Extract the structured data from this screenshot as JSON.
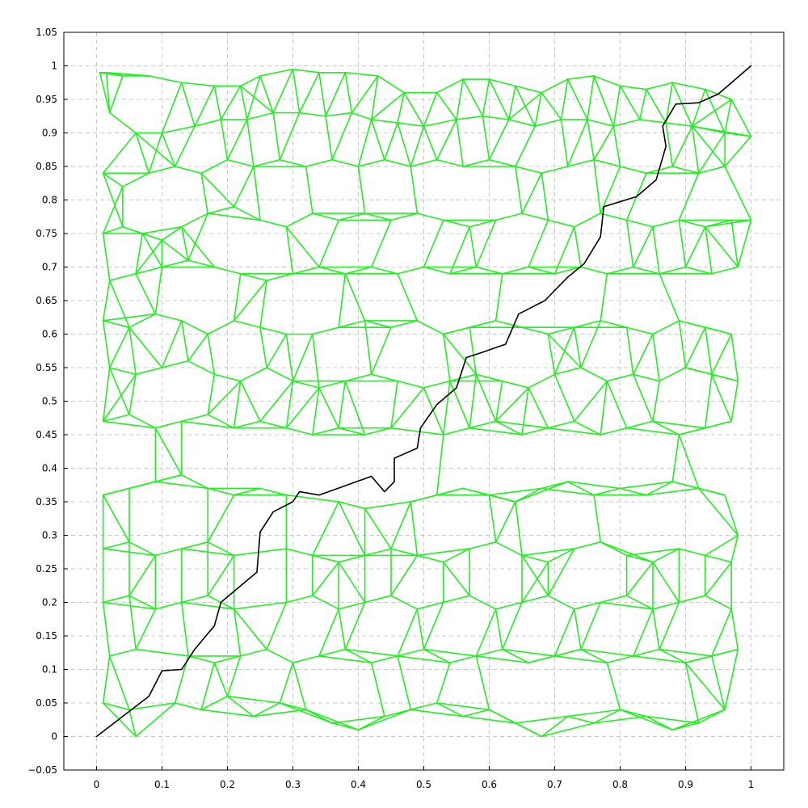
{
  "chart_data": {
    "type": "network",
    "xlim": [
      -0.05,
      1.05
    ],
    "ylim": [
      -0.05,
      1.05
    ],
    "grid": true,
    "xticks": [
      "0",
      "0.1",
      "0.2",
      "0.3",
      "0.4",
      "0.5",
      "0.6",
      "0.7",
      "0.8",
      "0.9",
      "1"
    ],
    "yticks": [
      "−0.05",
      "0",
      "0.05",
      "0.1",
      "0.15",
      "0.2",
      "0.25",
      "0.3",
      "0.35",
      "0.4",
      "0.45",
      "0.5",
      "0.55",
      "0.6",
      "0.65",
      "0.7",
      "0.75",
      "0.8",
      "0.85",
      "0.9",
      "0.95",
      "1",
      "1.05"
    ],
    "xtick_values": [
      0,
      0.1,
      0.2,
      0.3,
      0.4,
      0.5,
      0.6,
      0.7,
      0.8,
      0.9,
      1
    ],
    "ytick_values": [
      -0.05,
      0,
      0.05,
      0.1,
      0.15,
      0.2,
      0.25,
      0.3,
      0.35,
      0.4,
      0.45,
      0.5,
      0.55,
      0.6,
      0.65,
      0.7,
      0.75,
      0.8,
      0.85,
      0.9,
      0.95,
      1,
      1.05
    ],
    "colors": {
      "edges": "#22ee22",
      "path": "#000000",
      "grid": "#c8c8c8"
    },
    "shortest_path": [
      [
        0,
        0
      ],
      [
        0.08,
        0.06
      ],
      [
        0.1,
        0.098
      ],
      [
        0.13,
        0.1
      ],
      [
        0.15,
        0.13
      ],
      [
        0.18,
        0.165
      ],
      [
        0.19,
        0.2
      ],
      [
        0.245,
        0.245
      ],
      [
        0.25,
        0.305
      ],
      [
        0.27,
        0.335
      ],
      [
        0.3,
        0.35
      ],
      [
        0.31,
        0.365
      ],
      [
        0.34,
        0.36
      ],
      [
        0.42,
        0.388
      ],
      [
        0.44,
        0.365
      ],
      [
        0.455,
        0.38
      ],
      [
        0.455,
        0.415
      ],
      [
        0.49,
        0.43
      ],
      [
        0.495,
        0.46
      ],
      [
        0.52,
        0.495
      ],
      [
        0.55,
        0.52
      ],
      [
        0.565,
        0.565
      ],
      [
        0.59,
        0.573
      ],
      [
        0.625,
        0.585
      ],
      [
        0.645,
        0.63
      ],
      [
        0.685,
        0.65
      ],
      [
        0.72,
        0.685
      ],
      [
        0.745,
        0.705
      ],
      [
        0.77,
        0.745
      ],
      [
        0.775,
        0.79
      ],
      [
        0.825,
        0.805
      ],
      [
        0.855,
        0.83
      ],
      [
        0.87,
        0.88
      ],
      [
        0.865,
        0.91
      ],
      [
        0.885,
        0.943
      ],
      [
        0.92,
        0.945
      ],
      [
        0.95,
        0.958
      ],
      [
        1,
        1
      ]
    ],
    "graph": {
      "nodes": [
        [
          0.005,
          0.99
        ],
        [
          0.015,
          0.99
        ],
        [
          0.04,
          0.985
        ],
        [
          0.08,
          0.985
        ],
        [
          0.13,
          0.975
        ],
        [
          0.18,
          0.97
        ],
        [
          0.22,
          0.97
        ],
        [
          0.25,
          0.985
        ],
        [
          0.3,
          0.995
        ],
        [
          0.34,
          0.99
        ],
        [
          0.38,
          0.99
        ],
        [
          0.43,
          0.985
        ],
        [
          0.47,
          0.96
        ],
        [
          0.52,
          0.96
        ],
        [
          0.56,
          0.98
        ],
        [
          0.6,
          0.98
        ],
        [
          0.64,
          0.97
        ],
        [
          0.68,
          0.96
        ],
        [
          0.72,
          0.98
        ],
        [
          0.76,
          0.985
        ],
        [
          0.8,
          0.97
        ],
        [
          0.84,
          0.965
        ],
        [
          0.88,
          0.975
        ],
        [
          0.93,
          0.965
        ],
        [
          0.97,
          0.95
        ],
        [
          0.02,
          0.93
        ],
        [
          0.06,
          0.9
        ],
        [
          0.1,
          0.9
        ],
        [
          0.15,
          0.91
        ],
        [
          0.19,
          0.92
        ],
        [
          0.23,
          0.92
        ],
        [
          0.27,
          0.93
        ],
        [
          0.31,
          0.93
        ],
        [
          0.35,
          0.925
        ],
        [
          0.39,
          0.93
        ],
        [
          0.42,
          0.92
        ],
        [
          0.46,
          0.915
        ],
        [
          0.5,
          0.91
        ],
        [
          0.55,
          0.92
        ],
        [
          0.59,
          0.925
        ],
        [
          0.63,
          0.92
        ],
        [
          0.67,
          0.91
        ],
        [
          0.71,
          0.92
        ],
        [
          0.75,
          0.92
        ],
        [
          0.79,
          0.91
        ],
        [
          0.83,
          0.92
        ],
        [
          0.87,
          0.915
        ],
        [
          0.91,
          0.91
        ],
        [
          0.96,
          0.9
        ],
        [
          1.0,
          0.895
        ],
        [
          0.01,
          0.84
        ],
        [
          0.04,
          0.82
        ],
        [
          0.08,
          0.84
        ],
        [
          0.12,
          0.85
        ],
        [
          0.16,
          0.84
        ],
        [
          0.2,
          0.86
        ],
        [
          0.24,
          0.85
        ],
        [
          0.28,
          0.86
        ],
        [
          0.32,
          0.85
        ],
        [
          0.36,
          0.86
        ],
        [
          0.4,
          0.85
        ],
        [
          0.44,
          0.86
        ],
        [
          0.48,
          0.85
        ],
        [
          0.52,
          0.86
        ],
        [
          0.56,
          0.85
        ],
        [
          0.6,
          0.86
        ],
        [
          0.64,
          0.85
        ],
        [
          0.68,
          0.84
        ],
        [
          0.72,
          0.85
        ],
        [
          0.76,
          0.86
        ],
        [
          0.8,
          0.85
        ],
        [
          0.84,
          0.84
        ],
        [
          0.88,
          0.85
        ],
        [
          0.92,
          0.84
        ],
        [
          0.96,
          0.85
        ],
        [
          0.01,
          0.75
        ],
        [
          0.04,
          0.76
        ],
        [
          0.07,
          0.75
        ],
        [
          0.1,
          0.74
        ],
        [
          0.13,
          0.76
        ],
        [
          0.17,
          0.78
        ],
        [
          0.21,
          0.79
        ],
        [
          0.25,
          0.77
        ],
        [
          0.29,
          0.76
        ],
        [
          0.33,
          0.78
        ],
        [
          0.37,
          0.77
        ],
        [
          0.41,
          0.78
        ],
        [
          0.45,
          0.77
        ],
        [
          0.49,
          0.78
        ],
        [
          0.53,
          0.77
        ],
        [
          0.57,
          0.76
        ],
        [
          0.61,
          0.77
        ],
        [
          0.65,
          0.78
        ],
        [
          0.69,
          0.77
        ],
        [
          0.73,
          0.76
        ],
        [
          0.77,
          0.78
        ],
        [
          0.81,
          0.77
        ],
        [
          0.85,
          0.76
        ],
        [
          0.89,
          0.77
        ],
        [
          0.93,
          0.76
        ],
        [
          0.97,
          0.77
        ],
        [
          1.0,
          0.77
        ],
        [
          0.02,
          0.68
        ],
        [
          0.06,
          0.69
        ],
        [
          0.1,
          0.7
        ],
        [
          0.14,
          0.71
        ],
        [
          0.18,
          0.7
        ],
        [
          0.22,
          0.69
        ],
        [
          0.26,
          0.68
        ],
        [
          0.3,
          0.69
        ],
        [
          0.34,
          0.7
        ],
        [
          0.38,
          0.69
        ],
        [
          0.42,
          0.7
        ],
        [
          0.46,
          0.69
        ],
        [
          0.5,
          0.7
        ],
        [
          0.54,
          0.69
        ],
        [
          0.58,
          0.7
        ],
        [
          0.62,
          0.69
        ],
        [
          0.66,
          0.7
        ],
        [
          0.7,
          0.69
        ],
        [
          0.74,
          0.7
        ],
        [
          0.78,
          0.69
        ],
        [
          0.82,
          0.7
        ],
        [
          0.86,
          0.69
        ],
        [
          0.9,
          0.7
        ],
        [
          0.94,
          0.69
        ],
        [
          0.98,
          0.7
        ],
        [
          0.01,
          0.62
        ],
        [
          0.05,
          0.61
        ],
        [
          0.09,
          0.63
        ],
        [
          0.13,
          0.62
        ],
        [
          0.17,
          0.6
        ],
        [
          0.21,
          0.62
        ],
        [
          0.25,
          0.61
        ],
        [
          0.29,
          0.6
        ],
        [
          0.33,
          0.6
        ],
        [
          0.37,
          0.61
        ],
        [
          0.41,
          0.62
        ],
        [
          0.45,
          0.61
        ],
        [
          0.49,
          0.62
        ],
        [
          0.53,
          0.6
        ],
        [
          0.57,
          0.61
        ],
        [
          0.61,
          0.62
        ],
        [
          0.65,
          0.61
        ],
        [
          0.69,
          0.6
        ],
        [
          0.73,
          0.61
        ],
        [
          0.77,
          0.62
        ],
        [
          0.81,
          0.61
        ],
        [
          0.85,
          0.6
        ],
        [
          0.89,
          0.62
        ],
        [
          0.93,
          0.61
        ],
        [
          0.97,
          0.6
        ],
        [
          0.02,
          0.55
        ],
        [
          0.06,
          0.54
        ],
        [
          0.1,
          0.55
        ],
        [
          0.14,
          0.56
        ],
        [
          0.18,
          0.54
        ],
        [
          0.22,
          0.53
        ],
        [
          0.26,
          0.55
        ],
        [
          0.3,
          0.53
        ],
        [
          0.34,
          0.52
        ],
        [
          0.38,
          0.53
        ],
        [
          0.42,
          0.54
        ],
        [
          0.46,
          0.53
        ],
        [
          0.5,
          0.52
        ],
        [
          0.54,
          0.53
        ],
        [
          0.58,
          0.54
        ],
        [
          0.62,
          0.53
        ],
        [
          0.66,
          0.52
        ],
        [
          0.7,
          0.54
        ],
        [
          0.74,
          0.55
        ],
        [
          0.78,
          0.53
        ],
        [
          0.82,
          0.54
        ],
        [
          0.86,
          0.53
        ],
        [
          0.9,
          0.55
        ],
        [
          0.94,
          0.54
        ],
        [
          0.98,
          0.53
        ],
        [
          0.01,
          0.47
        ],
        [
          0.05,
          0.48
        ],
        [
          0.09,
          0.46
        ],
        [
          0.13,
          0.47
        ],
        [
          0.17,
          0.48
        ],
        [
          0.21,
          0.46
        ],
        [
          0.25,
          0.47
        ],
        [
          0.29,
          0.46
        ],
        [
          0.33,
          0.45
        ],
        [
          0.37,
          0.46
        ],
        [
          0.41,
          0.45
        ],
        [
          0.45,
          0.46
        ],
        [
          0.53,
          0.45
        ],
        [
          0.57,
          0.46
        ],
        [
          0.61,
          0.47
        ],
        [
          0.65,
          0.45
        ],
        [
          0.69,
          0.46
        ],
        [
          0.73,
          0.47
        ],
        [
          0.77,
          0.45
        ],
        [
          0.81,
          0.46
        ],
        [
          0.85,
          0.47
        ],
        [
          0.89,
          0.45
        ],
        [
          0.93,
          0.46
        ],
        [
          0.97,
          0.47
        ],
        [
          0.01,
          0.36
        ],
        [
          0.05,
          0.37
        ],
        [
          0.09,
          0.38
        ],
        [
          0.13,
          0.39
        ],
        [
          0.17,
          0.37
        ],
        [
          0.21,
          0.36
        ],
        [
          0.25,
          0.37
        ],
        [
          0.29,
          0.36
        ],
        [
          0.37,
          0.35
        ],
        [
          0.41,
          0.34
        ],
        [
          0.48,
          0.35
        ],
        [
          0.52,
          0.36
        ],
        [
          0.56,
          0.37
        ],
        [
          0.6,
          0.36
        ],
        [
          0.64,
          0.35
        ],
        [
          0.68,
          0.37
        ],
        [
          0.72,
          0.38
        ],
        [
          0.76,
          0.36
        ],
        [
          0.8,
          0.37
        ],
        [
          0.84,
          0.36
        ],
        [
          0.88,
          0.38
        ],
        [
          0.92,
          0.37
        ],
        [
          0.96,
          0.36
        ],
        [
          0.98,
          0.3
        ],
        [
          0.01,
          0.28
        ],
        [
          0.05,
          0.29
        ],
        [
          0.09,
          0.27
        ],
        [
          0.13,
          0.28
        ],
        [
          0.17,
          0.29
        ],
        [
          0.21,
          0.27
        ],
        [
          0.29,
          0.28
        ],
        [
          0.33,
          0.27
        ],
        [
          0.37,
          0.26
        ],
        [
          0.41,
          0.27
        ],
        [
          0.45,
          0.28
        ],
        [
          0.49,
          0.27
        ],
        [
          0.53,
          0.26
        ],
        [
          0.57,
          0.28
        ],
        [
          0.61,
          0.29
        ],
        [
          0.65,
          0.27
        ],
        [
          0.69,
          0.26
        ],
        [
          0.73,
          0.28
        ],
        [
          0.77,
          0.29
        ],
        [
          0.81,
          0.27
        ],
        [
          0.85,
          0.26
        ],
        [
          0.89,
          0.28
        ],
        [
          0.93,
          0.27
        ],
        [
          0.97,
          0.26
        ],
        [
          0.01,
          0.2
        ],
        [
          0.05,
          0.21
        ],
        [
          0.09,
          0.19
        ],
        [
          0.13,
          0.2
        ],
        [
          0.17,
          0.21
        ],
        [
          0.21,
          0.19
        ],
        [
          0.29,
          0.2
        ],
        [
          0.33,
          0.21
        ],
        [
          0.37,
          0.19
        ],
        [
          0.41,
          0.2
        ],
        [
          0.45,
          0.21
        ],
        [
          0.49,
          0.19
        ],
        [
          0.53,
          0.2
        ],
        [
          0.57,
          0.21
        ],
        [
          0.61,
          0.19
        ],
        [
          0.65,
          0.2
        ],
        [
          0.69,
          0.21
        ],
        [
          0.73,
          0.19
        ],
        [
          0.77,
          0.2
        ],
        [
          0.81,
          0.21
        ],
        [
          0.85,
          0.19
        ],
        [
          0.89,
          0.2
        ],
        [
          0.93,
          0.21
        ],
        [
          0.97,
          0.19
        ],
        [
          0.02,
          0.12
        ],
        [
          0.06,
          0.13
        ],
        [
          0.14,
          0.12
        ],
        [
          0.18,
          0.11
        ],
        [
          0.22,
          0.12
        ],
        [
          0.26,
          0.13
        ],
        [
          0.3,
          0.11
        ],
        [
          0.34,
          0.12
        ],
        [
          0.38,
          0.13
        ],
        [
          0.42,
          0.11
        ],
        [
          0.46,
          0.12
        ],
        [
          0.5,
          0.13
        ],
        [
          0.54,
          0.11
        ],
        [
          0.58,
          0.12
        ],
        [
          0.62,
          0.13
        ],
        [
          0.66,
          0.11
        ],
        [
          0.7,
          0.12
        ],
        [
          0.74,
          0.13
        ],
        [
          0.78,
          0.11
        ],
        [
          0.82,
          0.12
        ],
        [
          0.86,
          0.13
        ],
        [
          0.9,
          0.11
        ],
        [
          0.94,
          0.12
        ],
        [
          0.98,
          0.13
        ],
        [
          0.01,
          0.05
        ],
        [
          0.05,
          0.04
        ],
        [
          0.06,
          0.0
        ],
        [
          0.12,
          0.05
        ],
        [
          0.16,
          0.04
        ],
        [
          0.2,
          0.06
        ],
        [
          0.24,
          0.03
        ],
        [
          0.28,
          0.05
        ],
        [
          0.32,
          0.04
        ],
        [
          0.36,
          0.02
        ],
        [
          0.4,
          0.01
        ],
        [
          0.44,
          0.03
        ],
        [
          0.48,
          0.04
        ],
        [
          0.52,
          0.05
        ],
        [
          0.56,
          0.03
        ],
        [
          0.6,
          0.04
        ],
        [
          0.64,
          0.02
        ],
        [
          0.68,
          0.0
        ],
        [
          0.72,
          0.03
        ],
        [
          0.76,
          0.02
        ],
        [
          0.8,
          0.04
        ],
        [
          0.84,
          0.03
        ],
        [
          0.88,
          0.01
        ],
        [
          0.92,
          0.02
        ],
        [
          0.96,
          0.04
        ]
      ]
    }
  }
}
